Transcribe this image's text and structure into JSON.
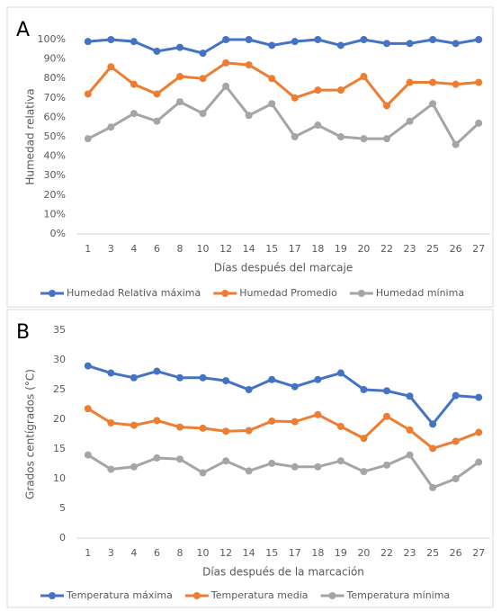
{
  "chart_data": [
    {
      "type": "line",
      "panel_label": "A",
      "x_label": "Días después del marcaje",
      "y_label": "Humedad relativa",
      "categories": [
        "1",
        "3",
        "4",
        "6",
        "8",
        "10",
        "12",
        "14",
        "15",
        "17",
        "18",
        "19",
        "20",
        "22",
        "23",
        "25",
        "26",
        "27"
      ],
      "ylim": [
        0,
        100
      ],
      "yticks": [
        {
          "value": 0,
          "label": "0%"
        },
        {
          "value": 10,
          "label": "10%"
        },
        {
          "value": 20,
          "label": "20%"
        },
        {
          "value": 30,
          "label": "30%"
        },
        {
          "value": 40,
          "label": "40%"
        },
        {
          "value": 50,
          "label": "50%"
        },
        {
          "value": 60,
          "label": "60%"
        },
        {
          "value": 70,
          "label": "70%"
        },
        {
          "value": 80,
          "label": "80%"
        },
        {
          "value": 90,
          "label": "90%"
        },
        {
          "value": 100,
          "label": "100%"
        }
      ],
      "grid": false,
      "series": [
        {
          "name": "Humedad Relativa máxima",
          "color": "#4472c4",
          "values": [
            99,
            100,
            99,
            94,
            96,
            93,
            100,
            100,
            97,
            99,
            100,
            97,
            100,
            98,
            98,
            100,
            98,
            100
          ]
        },
        {
          "name": "Humedad Promedio",
          "color": "#ed7d31",
          "values": [
            72,
            86,
            77,
            72,
            81,
            80,
            88,
            87,
            80,
            70,
            74,
            74,
            81,
            66,
            78,
            78,
            77,
            78
          ]
        },
        {
          "name": "Humedad mínima",
          "color": "#a5a5a5",
          "values": [
            49,
            55,
            62,
            58,
            68,
            62,
            76,
            61,
            67,
            50,
            56,
            50,
            49,
            49,
            58,
            67,
            46,
            57
          ]
        }
      ]
    },
    {
      "type": "line",
      "panel_label": "B",
      "x_label": "Días después de la marcación",
      "y_label": "Grados centígrados (°C)",
      "categories": [
        "1",
        "3",
        "4",
        "6",
        "8",
        "10",
        "12",
        "14",
        "15",
        "17",
        "18",
        "19",
        "20",
        "22",
        "23",
        "25",
        "26",
        "27"
      ],
      "ylim": [
        0,
        35
      ],
      "yticks": [
        0,
        5,
        10,
        15,
        20,
        25,
        30,
        35
      ],
      "grid": false,
      "series": [
        {
          "name": "Temperatura máxima",
          "color": "#4472c4",
          "values": [
            29,
            27.8,
            27,
            28.1,
            27,
            27,
            26.5,
            25,
            26.7,
            25.5,
            26.7,
            27.8,
            25,
            24.8,
            23.9,
            19.2,
            24,
            23.7
          ]
        },
        {
          "name": "Temperatura media",
          "color": "#ed7d31",
          "values": [
            21.8,
            19.4,
            19,
            19.8,
            18.7,
            18.5,
            18,
            18.1,
            19.7,
            19.6,
            20.8,
            18.8,
            16.8,
            20.5,
            18.2,
            15.1,
            16.3,
            17.8
          ]
        },
        {
          "name": "Temperatura mínima",
          "color": "#a5a5a5",
          "values": [
            14,
            11.6,
            12,
            13.5,
            13.3,
            11,
            13,
            11.3,
            12.6,
            12,
            12,
            13,
            11.2,
            12.3,
            14,
            8.5,
            10,
            12.8
          ]
        }
      ]
    }
  ]
}
